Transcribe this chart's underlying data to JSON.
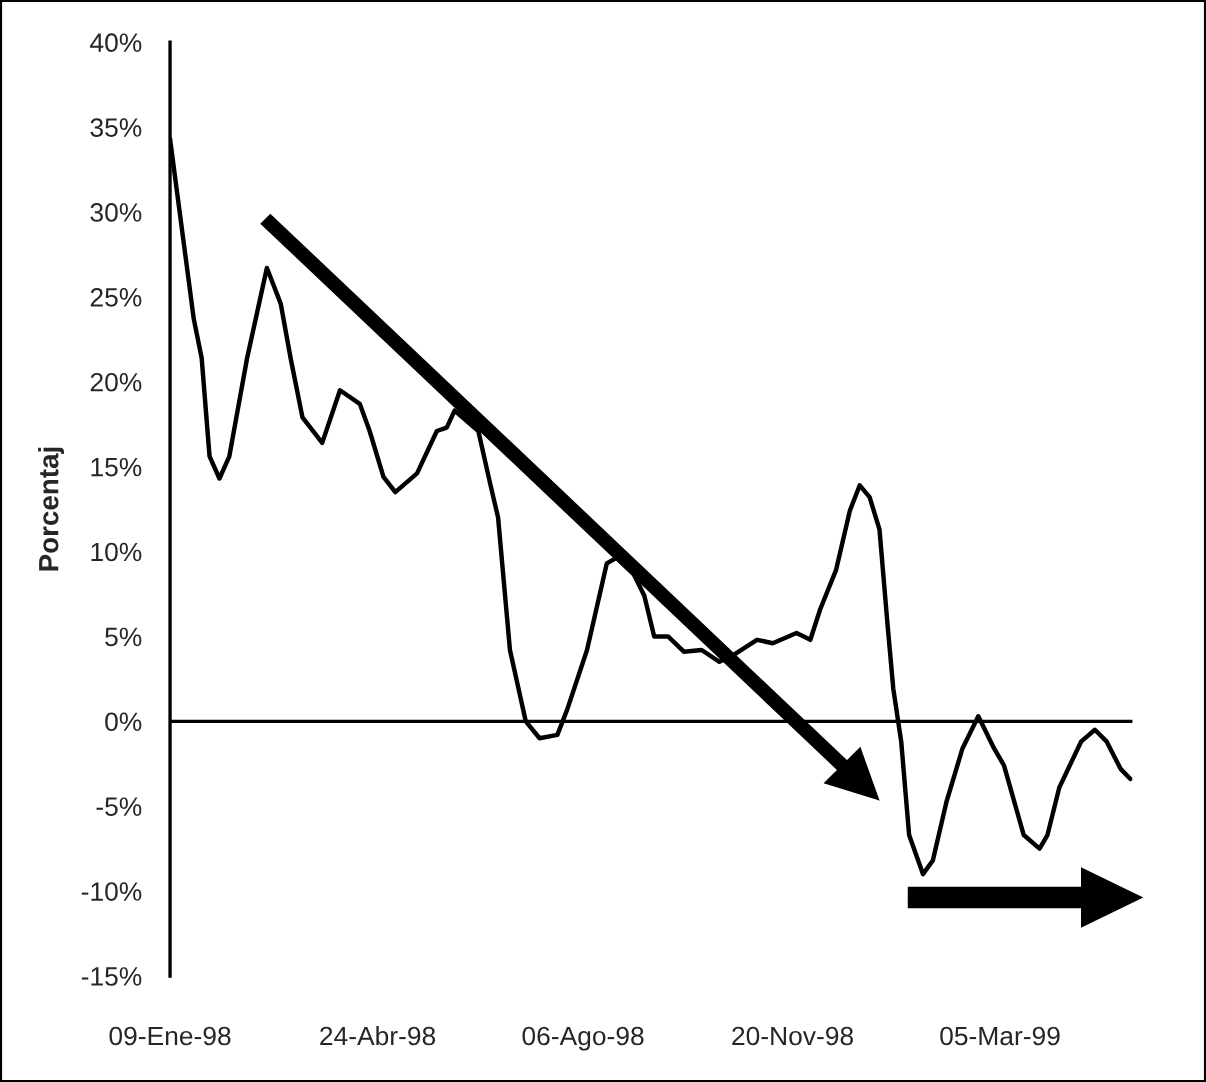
{
  "chart_data": {
    "type": "line",
    "ylabel": "Porcentaj",
    "x": [
      "1998-01-09",
      "1998-01-21",
      "1998-01-25",
      "1998-01-29",
      "1998-02-03",
      "1998-02-08",
      "1998-02-17",
      "1998-02-27",
      "1998-03-06",
      "1998-03-11",
      "1998-03-17",
      "1998-03-27",
      "1998-04-05",
      "1998-04-15",
      "1998-04-20",
      "1998-04-27",
      "1998-05-03",
      "1998-05-14",
      "1998-05-24",
      "1998-05-29",
      "1998-06-02",
      "1998-06-14",
      "1998-06-20",
      "1998-06-24",
      "1998-06-30",
      "1998-07-08",
      "1998-07-15",
      "1998-07-24",
      "1998-07-29",
      "1998-08-08",
      "1998-08-18",
      "1998-08-24",
      "1998-08-29",
      "1998-09-06",
      "1998-09-11",
      "1998-09-18",
      "1998-09-26",
      "1998-10-05",
      "1998-10-14",
      "1998-10-21",
      "1998-11-02",
      "1998-11-10",
      "1998-11-22",
      "1998-11-29",
      "1998-12-04",
      "1998-12-12",
      "1998-12-19",
      "1998-12-24",
      "1998-12-29",
      "1999-01-03",
      "1999-01-07",
      "1999-01-10",
      "1999-01-14",
      "1999-01-18",
      "1999-01-25",
      "1999-01-30",
      "1999-02-06",
      "1999-02-14",
      "1999-02-22",
      "1999-03-02",
      "1999-03-07",
      "1999-03-17",
      "1999-03-25",
      "1999-03-29",
      "1999-04-04",
      "1999-04-15",
      "1999-04-22",
      "1999-04-28",
      "1999-05-05",
      "1999-05-10"
    ],
    "series": [
      {
        "color": "#000000",
        "values": [
          34.3,
          23.7,
          21.4,
          15.6,
          14.3,
          15.6,
          21.4,
          26.7,
          24.6,
          21.4,
          17.9,
          16.4,
          19.5,
          18.7,
          17.1,
          14.4,
          13.5,
          14.6,
          17.1,
          17.3,
          18.3,
          17.1,
          14.0,
          12.0,
          4.2,
          0.0,
          -1.0,
          -0.8,
          0.7,
          4.2,
          9.3,
          9.7,
          9.3,
          7.4,
          5.0,
          5.0,
          4.1,
          4.2,
          3.5,
          3.9,
          4.8,
          4.6,
          5.2,
          4.8,
          6.6,
          8.9,
          12.4,
          13.9,
          13.2,
          11.3,
          5.8,
          1.9,
          -1.2,
          -6.7,
          -9.0,
          -8.2,
          -4.7,
          -1.6,
          0.3,
          -1.6,
          -2.6,
          -6.7,
          -7.5,
          -6.7,
          -3.9,
          -1.2,
          -0.5,
          -1.2,
          -2.8,
          -3.4
        ]
      }
    ],
    "xlim": [
      "1998-01-09",
      "1999-05-11"
    ],
    "xticks": [
      {
        "value": "1998-01-09",
        "label": "09-Ene-98"
      },
      {
        "value": "1998-04-24",
        "label": "24-Abr-98"
      },
      {
        "value": "1998-08-06",
        "label": "06-Ago-98"
      },
      {
        "value": "1998-11-20",
        "label": "20-Nov-98"
      },
      {
        "value": "1999-03-05",
        "label": "05-Mar-99"
      }
    ],
    "ylim": [
      -15,
      40
    ],
    "yticks": [
      {
        "value": -15,
        "label": "-15%"
      },
      {
        "value": -10,
        "label": "-10%"
      },
      {
        "value": -5,
        "label": "-5%"
      },
      {
        "value": 0,
        "label": "0%"
      },
      {
        "value": 5,
        "label": "5%"
      },
      {
        "value": 10,
        "label": "10%"
      },
      {
        "value": 15,
        "label": "15%"
      },
      {
        "value": 20,
        "label": "20%"
      },
      {
        "value": 25,
        "label": "25%"
      },
      {
        "value": 30,
        "label": "30%"
      },
      {
        "value": 35,
        "label": "35%"
      },
      {
        "value": 40,
        "label": "40%"
      }
    ],
    "ref_lines": [
      {
        "axis": "y",
        "value": 0,
        "color": "#000000",
        "line_style": "solid"
      }
    ],
    "grid": false,
    "legend": false,
    "marker": "none",
    "line_style": "solid"
  }
}
